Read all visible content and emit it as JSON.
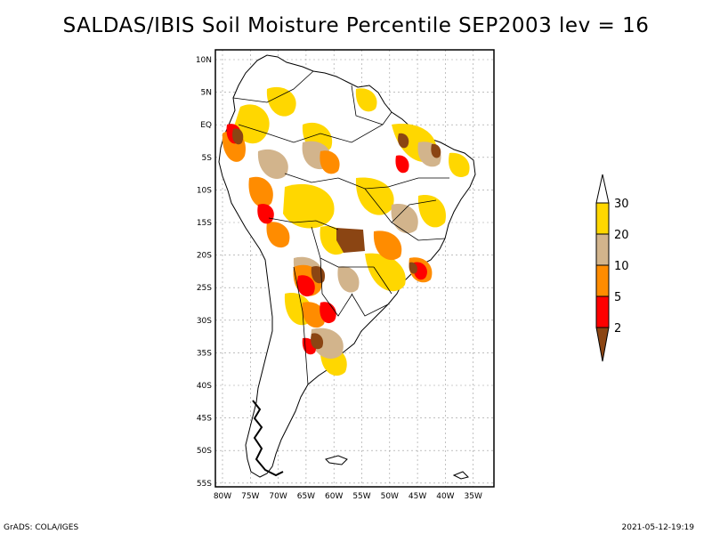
{
  "title": "SALDAS/IBIS Soil Moisture Percentile SEP2003 lev = 16",
  "map": {
    "lat_labels": [
      "10N",
      "5N",
      "EQ",
      "5S",
      "10S",
      "15S",
      "20S",
      "25S",
      "30S",
      "35S",
      "40S",
      "45S",
      "50S",
      "55S"
    ],
    "lon_labels": [
      "80W",
      "75W",
      "70W",
      "65W",
      "60W",
      "55W",
      "50W",
      "45W",
      "40W",
      "35W"
    ],
    "colors": {
      "below_2": "#8b4513",
      "p2_5": "#ff0000",
      "p5_10": "#ff8c00",
      "p10_20": "#d2b48c",
      "p20_30": "#ffd700",
      "above_30": "#ffffff"
    }
  },
  "colorbar": {
    "labels": [
      "2",
      "5",
      "10",
      "20",
      "30"
    ]
  },
  "footer": {
    "left": "GrADS: COLA/IGES",
    "right": "2021-05-12-19:19"
  }
}
